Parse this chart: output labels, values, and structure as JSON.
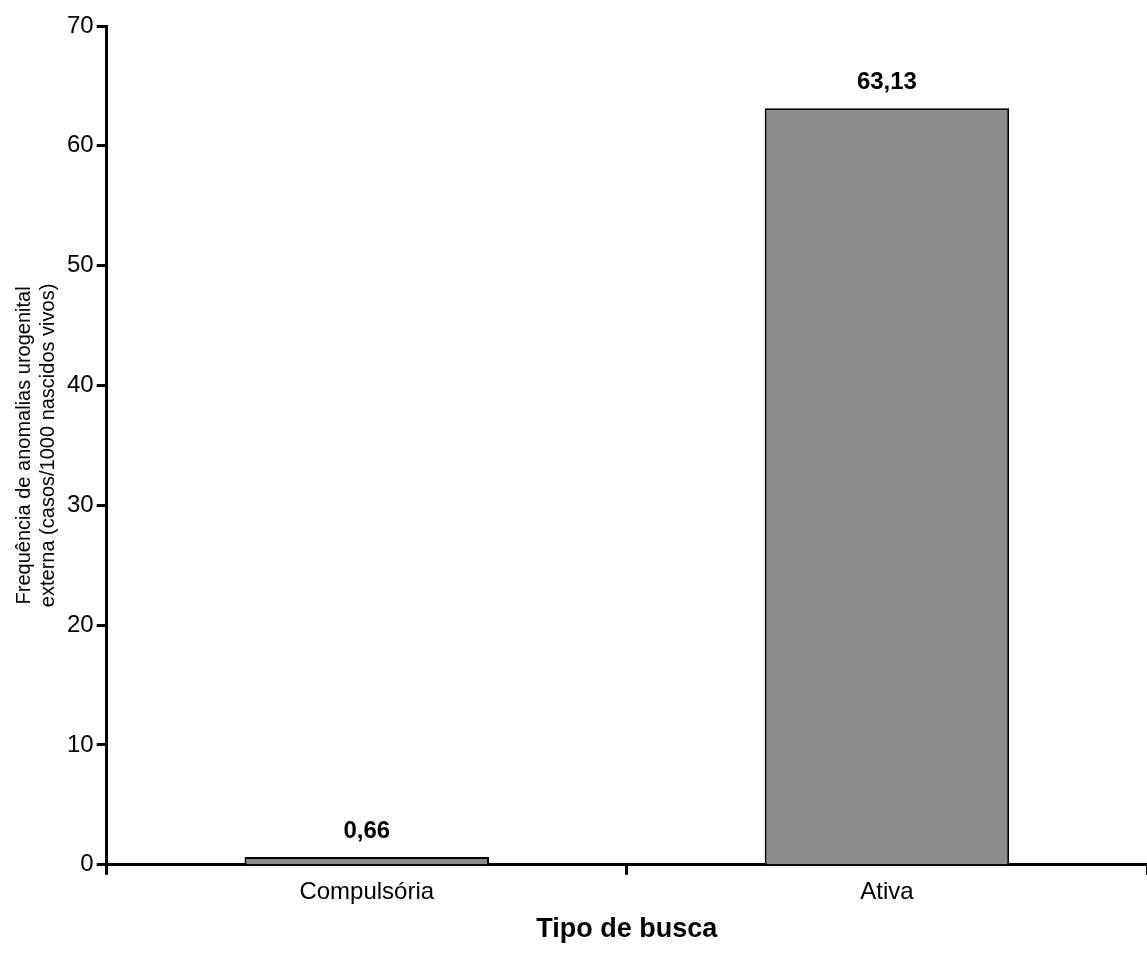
{
  "chart_data": {
    "type": "bar",
    "xlabel": "Tipo de busca",
    "ylabel": "Frequência de anomalias urogenital externa (casos/1000 nascidos vivos)",
    "categories": [
      "Compulsória",
      "Ativa"
    ],
    "values": [
      0.66,
      63.13
    ],
    "value_labels": [
      "0,66",
      "63,13"
    ],
    "color": "#8c8c8c",
    "ylim": [
      0,
      70
    ],
    "yticks": [
      0,
      10,
      20,
      30,
      40,
      50,
      60,
      70
    ],
    "grid": false,
    "legend": false
  }
}
